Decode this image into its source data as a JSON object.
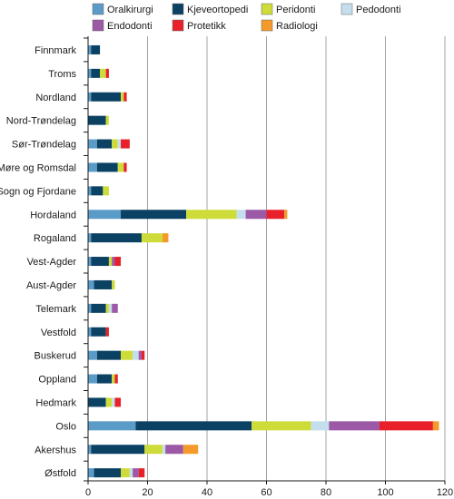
{
  "chart_data": {
    "type": "bar",
    "orientation": "horizontal",
    "stacked": true,
    "categories": [
      "Finnmark",
      "Troms",
      "Nordland",
      "Nord-Trøndelag",
      "Sør-Trøndelag",
      "Møre og Romsdal",
      "Sogn og Fjordane",
      "Hordaland",
      "Rogaland",
      "Vest-Agder",
      "Aust-Agder",
      "Telemark",
      "Vestfold",
      "Buskerud",
      "Oppland",
      "Hedmark",
      "Oslo",
      "Akershus",
      "Østfold"
    ],
    "series": [
      {
        "name": "Oralkirurgi",
        "color": "#5b9bc8",
        "values": [
          1,
          1,
          1,
          0,
          3,
          3,
          1,
          11,
          1,
          1,
          2,
          1,
          1,
          3,
          3,
          0,
          16,
          1,
          2
        ]
      },
      {
        "name": "Kjeveortopedi",
        "color": "#0b4163",
        "values": [
          3,
          3,
          10,
          6,
          5,
          7,
          4,
          22,
          17,
          6,
          6,
          5,
          5,
          8,
          5,
          6,
          39,
          18,
          9
        ]
      },
      {
        "name": "Peridonti",
        "color": "#cddc39",
        "values": [
          0,
          2,
          1,
          1,
          2,
          2,
          2,
          17,
          7,
          1,
          1,
          1,
          0,
          4,
          1,
          2,
          20,
          6,
          3
        ]
      },
      {
        "name": "Pedodonti",
        "color": "#c5deed",
        "values": [
          0,
          0,
          0,
          0,
          1,
          0,
          0,
          3,
          0,
          0,
          0,
          1,
          0,
          2,
          0,
          1,
          6,
          1,
          1
        ]
      },
      {
        "name": "Endodonti",
        "color": "#9b59a6",
        "values": [
          0,
          0,
          0,
          0,
          0,
          0,
          0,
          7,
          0,
          1,
          0,
          2,
          0,
          1,
          0,
          0,
          17,
          6,
          2
        ]
      },
      {
        "name": "Protetikk",
        "color": "#e8202a",
        "values": [
          0,
          1,
          1,
          0,
          3,
          1,
          0,
          6,
          0,
          2,
          0,
          0,
          1,
          1,
          1,
          2,
          18,
          0,
          2
        ]
      },
      {
        "name": "Radiologi",
        "color": "#f39a2b",
        "values": [
          0,
          0,
          0,
          0,
          0,
          0,
          0,
          1,
          2,
          0,
          0,
          0,
          0,
          0,
          0,
          0,
          2,
          5,
          0
        ]
      }
    ],
    "xlim": [
      0,
      120
    ],
    "xticks": [
      0,
      20,
      40,
      60,
      80,
      100,
      120
    ],
    "grid": true,
    "legend_position": "top"
  }
}
